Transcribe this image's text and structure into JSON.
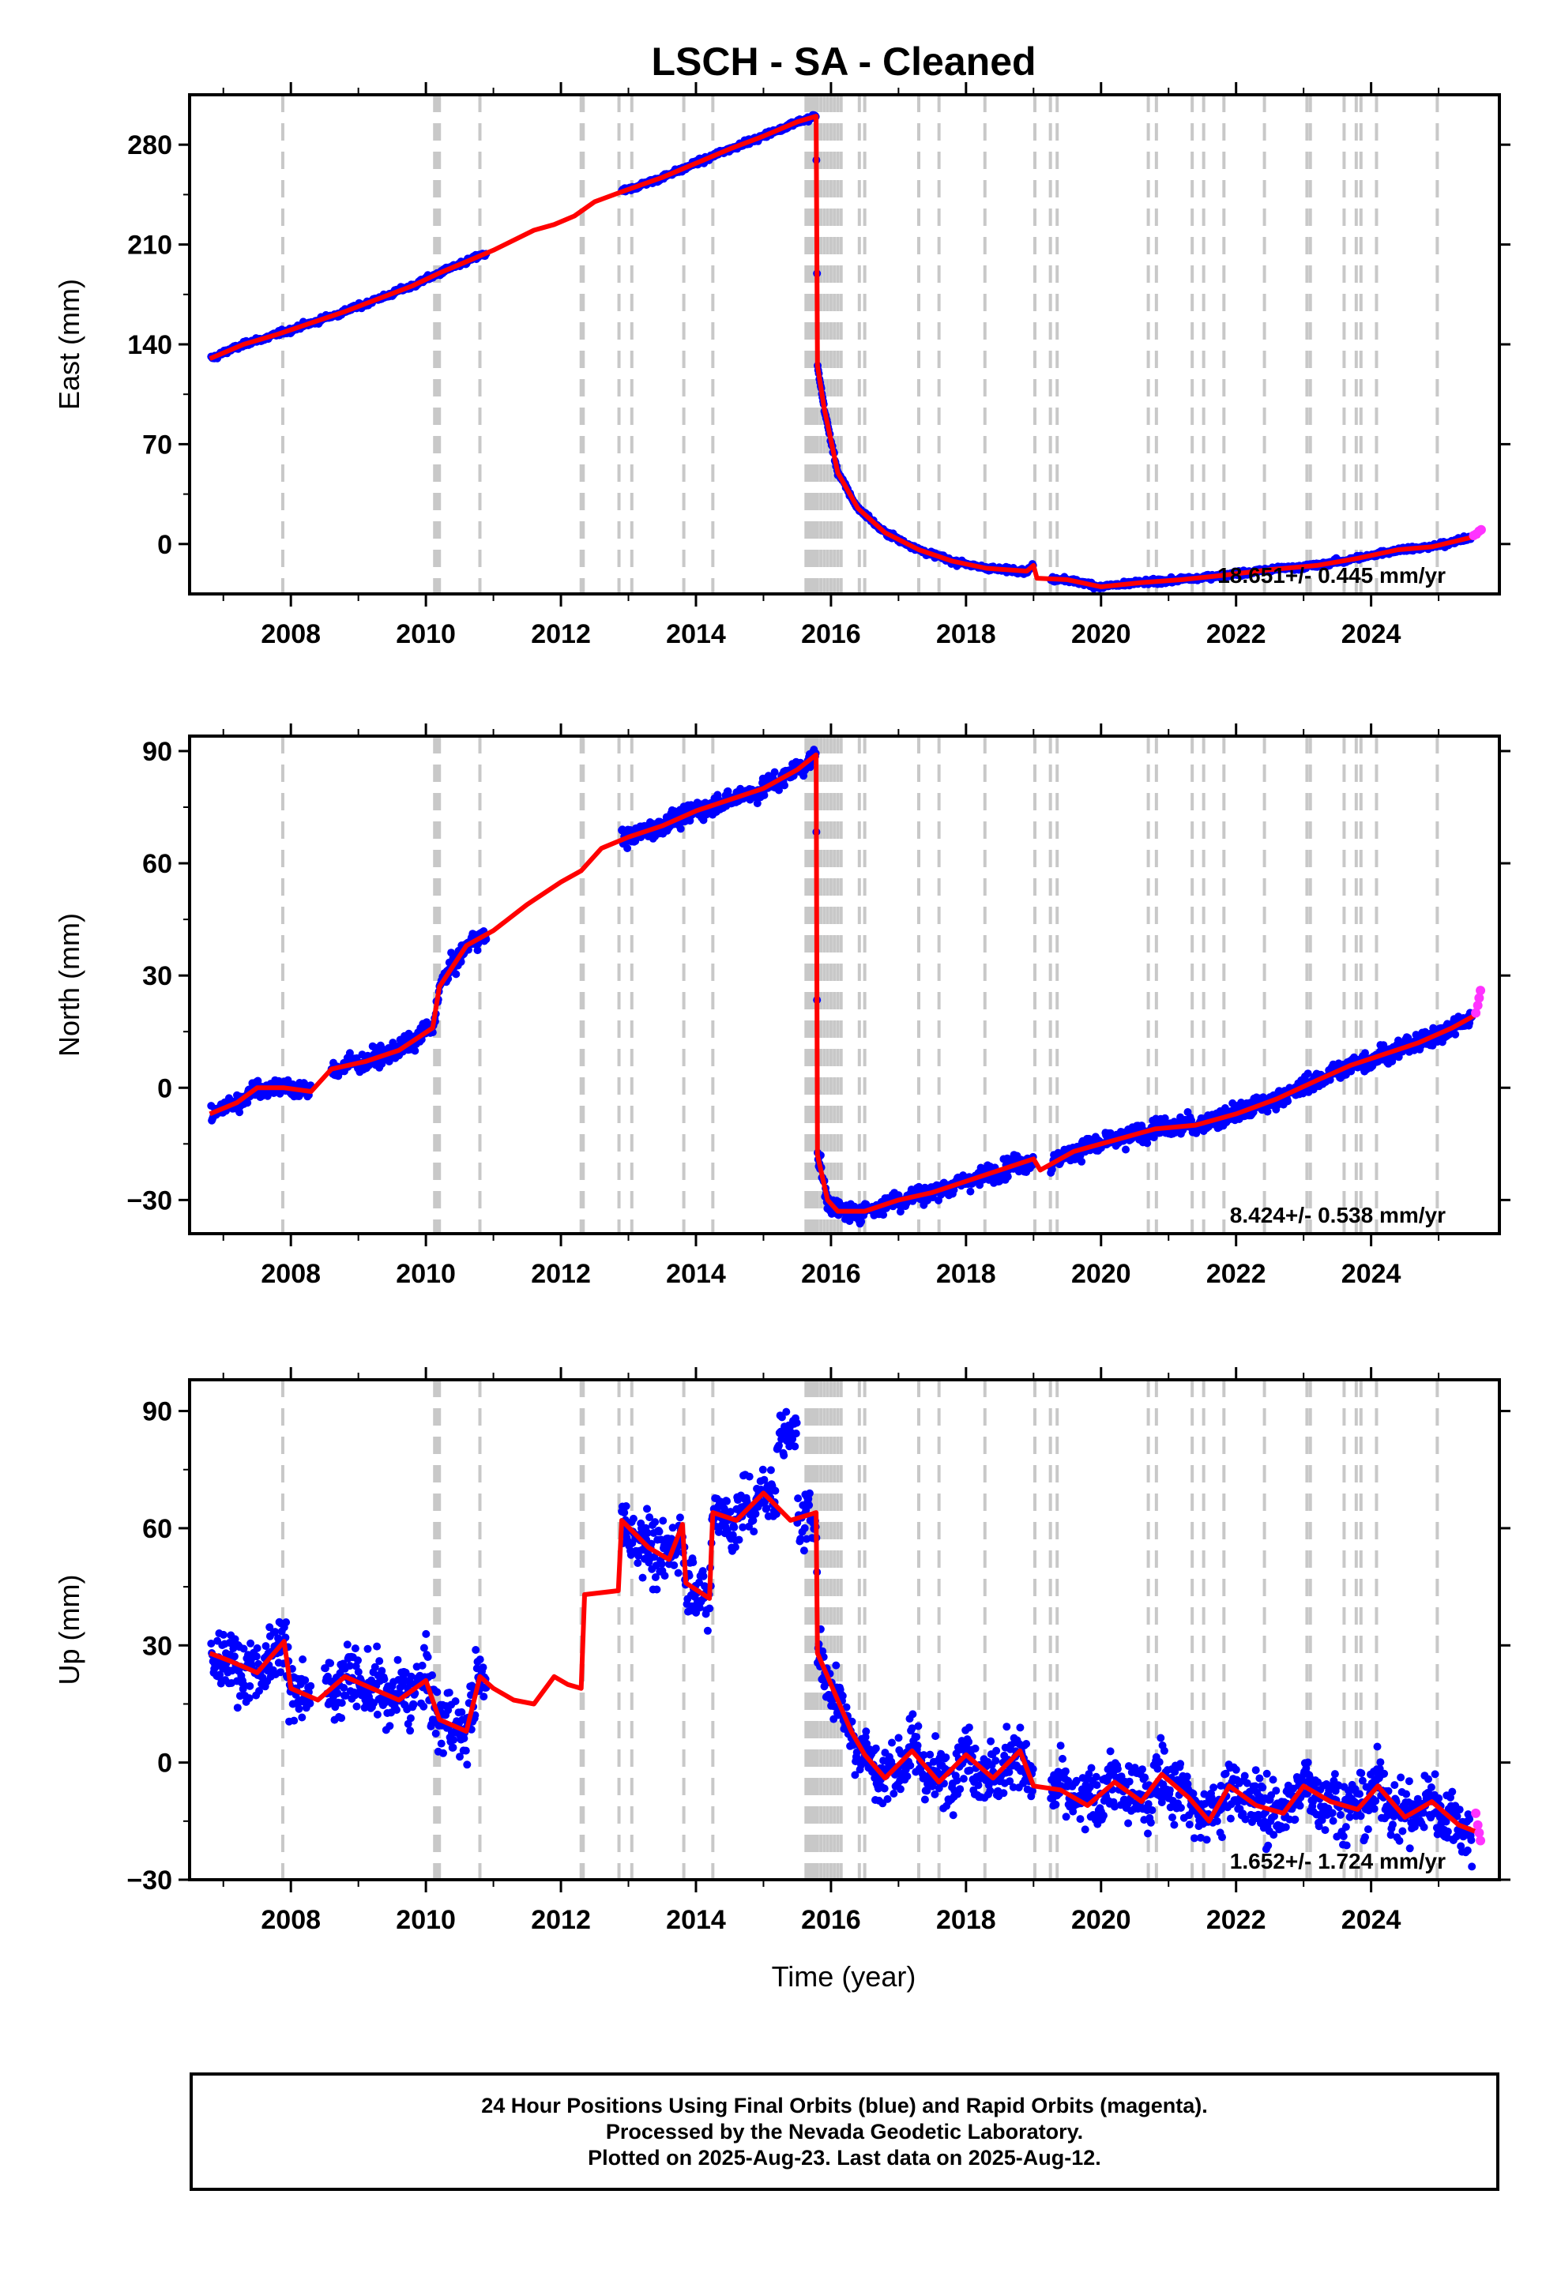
{
  "chart_data": {
    "type": "scatter",
    "title": "LSCH  - SA - Cleaned",
    "xlabel": "Time (year)",
    "xlim": [
      2006.5,
      2025.9
    ],
    "x_ticks": [
      2008,
      2010,
      2012,
      2014,
      2016,
      2018,
      2020,
      2022,
      2024
    ],
    "colors": {
      "final_points": "#0000ff",
      "rapid_points": "#ff33ff",
      "model": "#ff0000",
      "events": "#c8c8c8"
    },
    "event_lines": [
      2007.88,
      2010.13,
      2010.17,
      2010.2,
      2010.8,
      2012.3,
      2012.33,
      2012.86,
      2013.05,
      2013.82,
      2014.25,
      2015.63,
      2015.66,
      2015.69,
      2015.72,
      2015.76,
      2015.8,
      2015.85,
      2015.9,
      2015.95,
      2016.0,
      2016.05,
      2016.1,
      2016.15,
      2016.42,
      2016.5,
      2017.3,
      2017.6,
      2018.28,
      2019.02,
      2019.25,
      2019.35,
      2020.7,
      2020.82,
      2021.35,
      2021.52,
      2021.82,
      2022.42,
      2023.05,
      2023.1,
      2023.6,
      2023.78,
      2023.85,
      2024.08,
      2024.98
    ],
    "panels": [
      {
        "ylabel": "East (mm)",
        "ylim": [
          -35,
          315
        ],
        "y_ticks": [
          0,
          70,
          140,
          210,
          280
        ],
        "rate": "18.651+/- 0.445 mm/yr",
        "noise": 1.2,
        "gaps": [
          [
            2010.9,
            2012.9
          ],
          [
            2019.0,
            2019.25
          ]
        ],
        "model": [
          [
            2006.8,
            130
          ],
          [
            2007.3,
            140
          ],
          [
            2007.8,
            147
          ],
          [
            2008.3,
            155
          ],
          [
            2008.8,
            163
          ],
          [
            2009.3,
            172
          ],
          [
            2009.8,
            181
          ],
          [
            2010.2,
            190
          ],
          [
            2010.7,
            200
          ],
          [
            2011.0,
            206
          ],
          [
            2011.6,
            220
          ],
          [
            2011.9,
            224
          ],
          [
            2012.2,
            230
          ],
          [
            2012.5,
            240
          ],
          [
            2012.9,
            247
          ],
          [
            2013.5,
            257
          ],
          [
            2014.0,
            267
          ],
          [
            2014.5,
            277
          ],
          [
            2015.0,
            286
          ],
          [
            2015.5,
            296
          ],
          [
            2015.78,
            300
          ],
          [
            2015.8,
            125
          ],
          [
            2015.9,
            95
          ],
          [
            2016.1,
            50
          ],
          [
            2016.4,
            25
          ],
          [
            2016.8,
            8
          ],
          [
            2017.3,
            -4
          ],
          [
            2017.8,
            -12
          ],
          [
            2018.3,
            -17
          ],
          [
            2018.9,
            -19
          ],
          [
            2019.0,
            -15
          ],
          [
            2019.05,
            -24
          ],
          [
            2019.5,
            -25
          ],
          [
            2020.0,
            -30
          ],
          [
            2020.6,
            -27
          ],
          [
            2021.2,
            -25
          ],
          [
            2021.8,
            -22
          ],
          [
            2022.5,
            -18
          ],
          [
            2023.2,
            -15
          ],
          [
            2023.8,
            -10
          ],
          [
            2024.4,
            -4
          ],
          [
            2024.9,
            -2
          ],
          [
            2025.6,
            6
          ]
        ],
        "rapid": [
          [
            2025.52,
            6
          ],
          [
            2025.56,
            7
          ],
          [
            2025.6,
            9
          ],
          [
            2025.63,
            10
          ]
        ]
      },
      {
        "ylabel": "North (mm)",
        "ylim": [
          -39,
          94
        ],
        "y_ticks": [
          -30,
          0,
          30,
          60,
          90
        ],
        "rate": "8.424+/- 0.538 mm/yr",
        "noise": 1.7,
        "gaps": [
          [
            2008.3,
            2008.6
          ],
          [
            2010.9,
            2012.9
          ],
          [
            2019.0,
            2019.25
          ]
        ],
        "model": [
          [
            2006.8,
            -7
          ],
          [
            2007.2,
            -4
          ],
          [
            2007.5,
            0
          ],
          [
            2007.9,
            0
          ],
          [
            2008.3,
            -1
          ],
          [
            2008.6,
            5
          ],
          [
            2009.1,
            7
          ],
          [
            2009.6,
            10
          ],
          [
            2010.1,
            16
          ],
          [
            2010.2,
            27
          ],
          [
            2010.6,
            38
          ],
          [
            2011.0,
            42
          ],
          [
            2011.5,
            49
          ],
          [
            2012.0,
            55
          ],
          [
            2012.3,
            58
          ],
          [
            2012.6,
            64
          ],
          [
            2013.0,
            67
          ],
          [
            2013.5,
            70
          ],
          [
            2014.0,
            74
          ],
          [
            2014.5,
            77
          ],
          [
            2015.0,
            80
          ],
          [
            2015.5,
            85
          ],
          [
            2015.78,
            89
          ],
          [
            2015.8,
            -18
          ],
          [
            2015.95,
            -30
          ],
          [
            2016.1,
            -33
          ],
          [
            2016.5,
            -33
          ],
          [
            2017.0,
            -30
          ],
          [
            2017.5,
            -28
          ],
          [
            2018.0,
            -25
          ],
          [
            2018.5,
            -22
          ],
          [
            2019.0,
            -19
          ],
          [
            2019.1,
            -22
          ],
          [
            2019.6,
            -17
          ],
          [
            2020.2,
            -14
          ],
          [
            2020.8,
            -11
          ],
          [
            2021.4,
            -10
          ],
          [
            2022.0,
            -7
          ],
          [
            2022.6,
            -3
          ],
          [
            2023.2,
            2
          ],
          [
            2023.7,
            6
          ],
          [
            2024.2,
            9
          ],
          [
            2024.7,
            12
          ],
          [
            2025.2,
            16
          ],
          [
            2025.6,
            20
          ]
        ],
        "rapid": [
          [
            2025.55,
            20
          ],
          [
            2025.58,
            22
          ],
          [
            2025.6,
            24
          ],
          [
            2025.62,
            26
          ]
        ]
      },
      {
        "ylabel": "Up (mm)",
        "ylim": [
          -30,
          98
        ],
        "y_ticks": [
          -30,
          0,
          30,
          60,
          90
        ],
        "rate": "1.652+/- 1.724 mm/yr",
        "noise": 5.5,
        "gaps": [
          [
            2008.3,
            2008.5
          ],
          [
            2010.9,
            2012.9
          ],
          [
            2019.0,
            2019.25
          ]
        ],
        "model": [
          [
            2006.8,
            28
          ],
          [
            2007.1,
            26
          ],
          [
            2007.5,
            23
          ],
          [
            2007.9,
            31
          ],
          [
            2008.0,
            19
          ],
          [
            2008.4,
            16
          ],
          [
            2008.8,
            22
          ],
          [
            2009.2,
            19
          ],
          [
            2009.6,
            16
          ],
          [
            2010.0,
            21
          ],
          [
            2010.2,
            11
          ],
          [
            2010.6,
            8
          ],
          [
            2010.8,
            22
          ],
          [
            2011.0,
            19
          ],
          [
            2011.3,
            16
          ],
          [
            2011.6,
            15
          ],
          [
            2011.9,
            22
          ],
          [
            2012.1,
            20
          ],
          [
            2012.3,
            19
          ],
          [
            2012.35,
            43
          ],
          [
            2012.85,
            44
          ],
          [
            2012.9,
            62
          ],
          [
            2013.3,
            55
          ],
          [
            2013.6,
            52
          ],
          [
            2013.8,
            61
          ],
          [
            2013.85,
            46
          ],
          [
            2014.2,
            42
          ],
          [
            2014.25,
            64
          ],
          [
            2014.6,
            62
          ],
          [
            2015.0,
            69
          ],
          [
            2015.4,
            62
          ],
          [
            2015.78,
            64
          ],
          [
            2015.8,
            28
          ],
          [
            2016.0,
            20
          ],
          [
            2016.3,
            8
          ],
          [
            2016.5,
            2
          ],
          [
            2016.8,
            -4
          ],
          [
            2017.2,
            3
          ],
          [
            2017.6,
            -5
          ],
          [
            2018.0,
            2
          ],
          [
            2018.4,
            -4
          ],
          [
            2018.8,
            3
          ],
          [
            2019.0,
            -6
          ],
          [
            2019.4,
            -7
          ],
          [
            2019.8,
            -11
          ],
          [
            2020.2,
            -5
          ],
          [
            2020.6,
            -10
          ],
          [
            2020.9,
            -3
          ],
          [
            2021.3,
            -9
          ],
          [
            2021.6,
            -15
          ],
          [
            2021.9,
            -6
          ],
          [
            2022.3,
            -11
          ],
          [
            2022.7,
            -13
          ],
          [
            2023.0,
            -6
          ],
          [
            2023.4,
            -10
          ],
          [
            2023.8,
            -12
          ],
          [
            2024.1,
            -6
          ],
          [
            2024.5,
            -14
          ],
          [
            2024.9,
            -10
          ],
          [
            2025.3,
            -16
          ],
          [
            2025.6,
            -18
          ]
        ],
        "rapid": [
          [
            2025.55,
            -13
          ],
          [
            2025.58,
            -16
          ],
          [
            2025.6,
            -18
          ],
          [
            2025.62,
            -20
          ]
        ]
      }
    ]
  },
  "footer": {
    "line1": "24 Hour Positions Using Final Orbits (blue) and Rapid Orbits (magenta).",
    "line2": "Processed by the Nevada Geodetic Laboratory.",
    "line3": "Plotted on 2025-Aug-23. Last data on 2025-Aug-12."
  }
}
